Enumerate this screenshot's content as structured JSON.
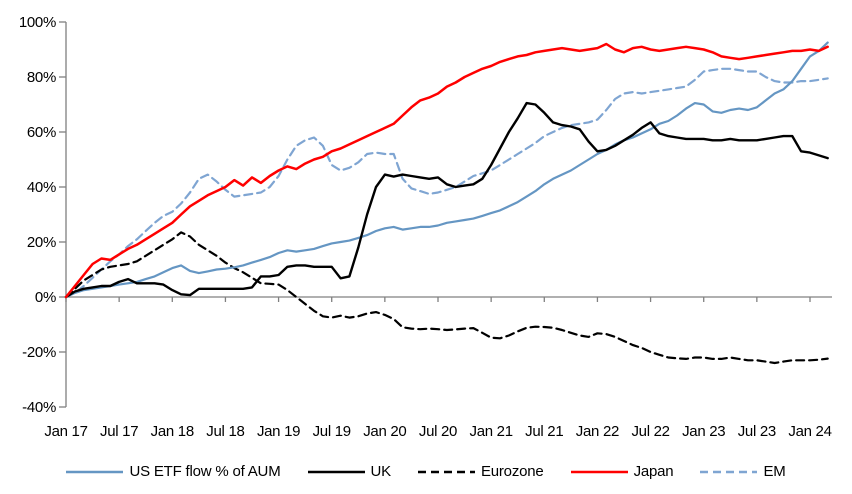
{
  "chart_data": {
    "type": "line",
    "title": "",
    "x_unit": "months since Jan 2017, monthly samples",
    "x_tick_labels": [
      "Jan 17",
      "Jul 17",
      "Jan 18",
      "Jul 18",
      "Jan 19",
      "Jul 19",
      "Jan 20",
      "Jul 20",
      "Jan 21",
      "Jul 21",
      "Jan 22",
      "Jul 22",
      "Jan 23",
      "Jul 23",
      "Jan 24"
    ],
    "y_tick_labels": [
      "-40%",
      "-20%",
      "0%",
      "20%",
      "40%",
      "60%",
      "80%",
      "100%"
    ],
    "y_tick_values": [
      -40,
      -20,
      0,
      20,
      40,
      60,
      80,
      100
    ],
    "ylim": [
      -40,
      100
    ],
    "grid": false,
    "legend_position": "bottom",
    "axis_color": "#808080",
    "series": [
      {
        "name": "US ETF flow % of AUM",
        "color": "#6596C3",
        "dash": false,
        "values": [
          0,
          1.5,
          2.5,
          3,
          3.5,
          4,
          4.5,
          5,
          5.5,
          6.5,
          7.5,
          9,
          10.5,
          11.5,
          9.5,
          8.7,
          9.3,
          10,
          10.3,
          10.8,
          11.5,
          12.5,
          13.5,
          14.5,
          16,
          17,
          16.5,
          17,
          17.5,
          18.5,
          19.5,
          20,
          20.5,
          21.5,
          22.5,
          24,
          25,
          25.5,
          24.5,
          25,
          25.5,
          25.5,
          26,
          27,
          27.5,
          28,
          28.5,
          29.5,
          30.5,
          31.5,
          33,
          34.5,
          36.5,
          38.5,
          41,
          43,
          44.5,
          46,
          48,
          50,
          52,
          53.5,
          55.5,
          57,
          58,
          59.5,
          61,
          63,
          64,
          66,
          68.5,
          70.5,
          70,
          67.5,
          67,
          68,
          68.5,
          68,
          69,
          71.5,
          74,
          75.5,
          78.5,
          83,
          87.5,
          89.5,
          92.5
        ]
      },
      {
        "name": "UK",
        "color": "#000000",
        "dash": false,
        "values": [
          0,
          2,
          3,
          3.5,
          4,
          4,
          5.5,
          6.5,
          5,
          5,
          5,
          4.5,
          2.5,
          1,
          0.7,
          3,
          3,
          3,
          3,
          3,
          3,
          3.5,
          7.5,
          7.5,
          8,
          11,
          11.5,
          11.5,
          11,
          11,
          11,
          6.8,
          7.5,
          18,
          30,
          40,
          44.5,
          43.8,
          44.5,
          44,
          43.5,
          43,
          43.5,
          41,
          40,
          40.5,
          41,
          43,
          48,
          54,
          60,
          65,
          70.5,
          70,
          67,
          63.5,
          62.5,
          62,
          61,
          56.5,
          53,
          53.5,
          55,
          57,
          59,
          61.5,
          63.5,
          59.5,
          58.5,
          58,
          57.5,
          57.5,
          57.5,
          57,
          57,
          57.5,
          57,
          57,
          57,
          57.5,
          58,
          58.5,
          58.5,
          53,
          52.5,
          51.5,
          50.5
        ]
      },
      {
        "name": "Eurozone",
        "color": "#000000",
        "dash": true,
        "values": [
          0,
          3,
          6,
          8,
          10,
          11,
          11.5,
          12,
          13,
          15,
          17,
          19,
          21,
          23.5,
          22,
          19,
          17,
          15,
          12.5,
          10.5,
          9,
          7,
          5,
          4.8,
          4.5,
          2.5,
          0,
          -2.5,
          -5,
          -7,
          -7.5,
          -6.8,
          -7.5,
          -7,
          -6,
          -5.5,
          -6.5,
          -8,
          -11,
          -11.5,
          -11.7,
          -11.5,
          -11.7,
          -12,
          -11.8,
          -11.5,
          -11.3,
          -13,
          -14.8,
          -15,
          -14,
          -12.5,
          -11.2,
          -10.8,
          -10.9,
          -11.2,
          -12,
          -13,
          -14,
          -14.5,
          -13.2,
          -13.5,
          -14.5,
          -16,
          -17.5,
          -18.5,
          -20,
          -21,
          -22,
          -22.3,
          -22.5,
          -22,
          -22,
          -22.5,
          -22.5,
          -22,
          -22.5,
          -23,
          -23,
          -23.5,
          -24,
          -23.5,
          -23,
          -23,
          -23,
          -22.8,
          -22.4
        ]
      },
      {
        "name": "Japan",
        "color": "#FF0000",
        "dash": false,
        "values": [
          0,
          4,
          8,
          12,
          14,
          13.5,
          15.5,
          17.5,
          19,
          21,
          23,
          25,
          27,
          30,
          33,
          35,
          37,
          38.5,
          40,
          42.5,
          40.5,
          43.5,
          41.5,
          44,
          46,
          47.5,
          46.5,
          48.5,
          50,
          51,
          53,
          54,
          55.5,
          57,
          58.5,
          60,
          61.5,
          63,
          66,
          69,
          71.5,
          72.5,
          74,
          76.5,
          78,
          80,
          81.5,
          83,
          84,
          85.5,
          86.5,
          87.5,
          88,
          89,
          89.5,
          90,
          90.5,
          90,
          89.5,
          90,
          90.5,
          92,
          90,
          89,
          90.5,
          91,
          90,
          89.5,
          90,
          90.5,
          91,
          90.5,
          90,
          89,
          87.5,
          87,
          86.5,
          87,
          87.5,
          88,
          88.5,
          89,
          89.5,
          89.5,
          90,
          89.5,
          91
        ]
      },
      {
        "name": "EM",
        "color": "#7FA5D2",
        "dash": true,
        "values": [
          0,
          1.5,
          4,
          7,
          10,
          13,
          15.5,
          18.5,
          21,
          24,
          27,
          29.5,
          31,
          34,
          38,
          43,
          44.5,
          42,
          39,
          36.5,
          37,
          37.5,
          38,
          40,
          44,
          50,
          55,
          57,
          58,
          55,
          48,
          46,
          47,
          49,
          52,
          52.5,
          52,
          52,
          43,
          39.5,
          38.5,
          37.5,
          38,
          39,
          40,
          42,
          44,
          45,
          46,
          48,
          50,
          52,
          54,
          56,
          58.5,
          60,
          61.5,
          62.5,
          63,
          63.5,
          64.5,
          68,
          72,
          74,
          74.5,
          74,
          74.5,
          75,
          75.5,
          76,
          76.5,
          79,
          82,
          82.5,
          83,
          83,
          82.5,
          82,
          82,
          80,
          78.5,
          78,
          78,
          78.5,
          78.5,
          79,
          79.5
        ]
      }
    ]
  }
}
